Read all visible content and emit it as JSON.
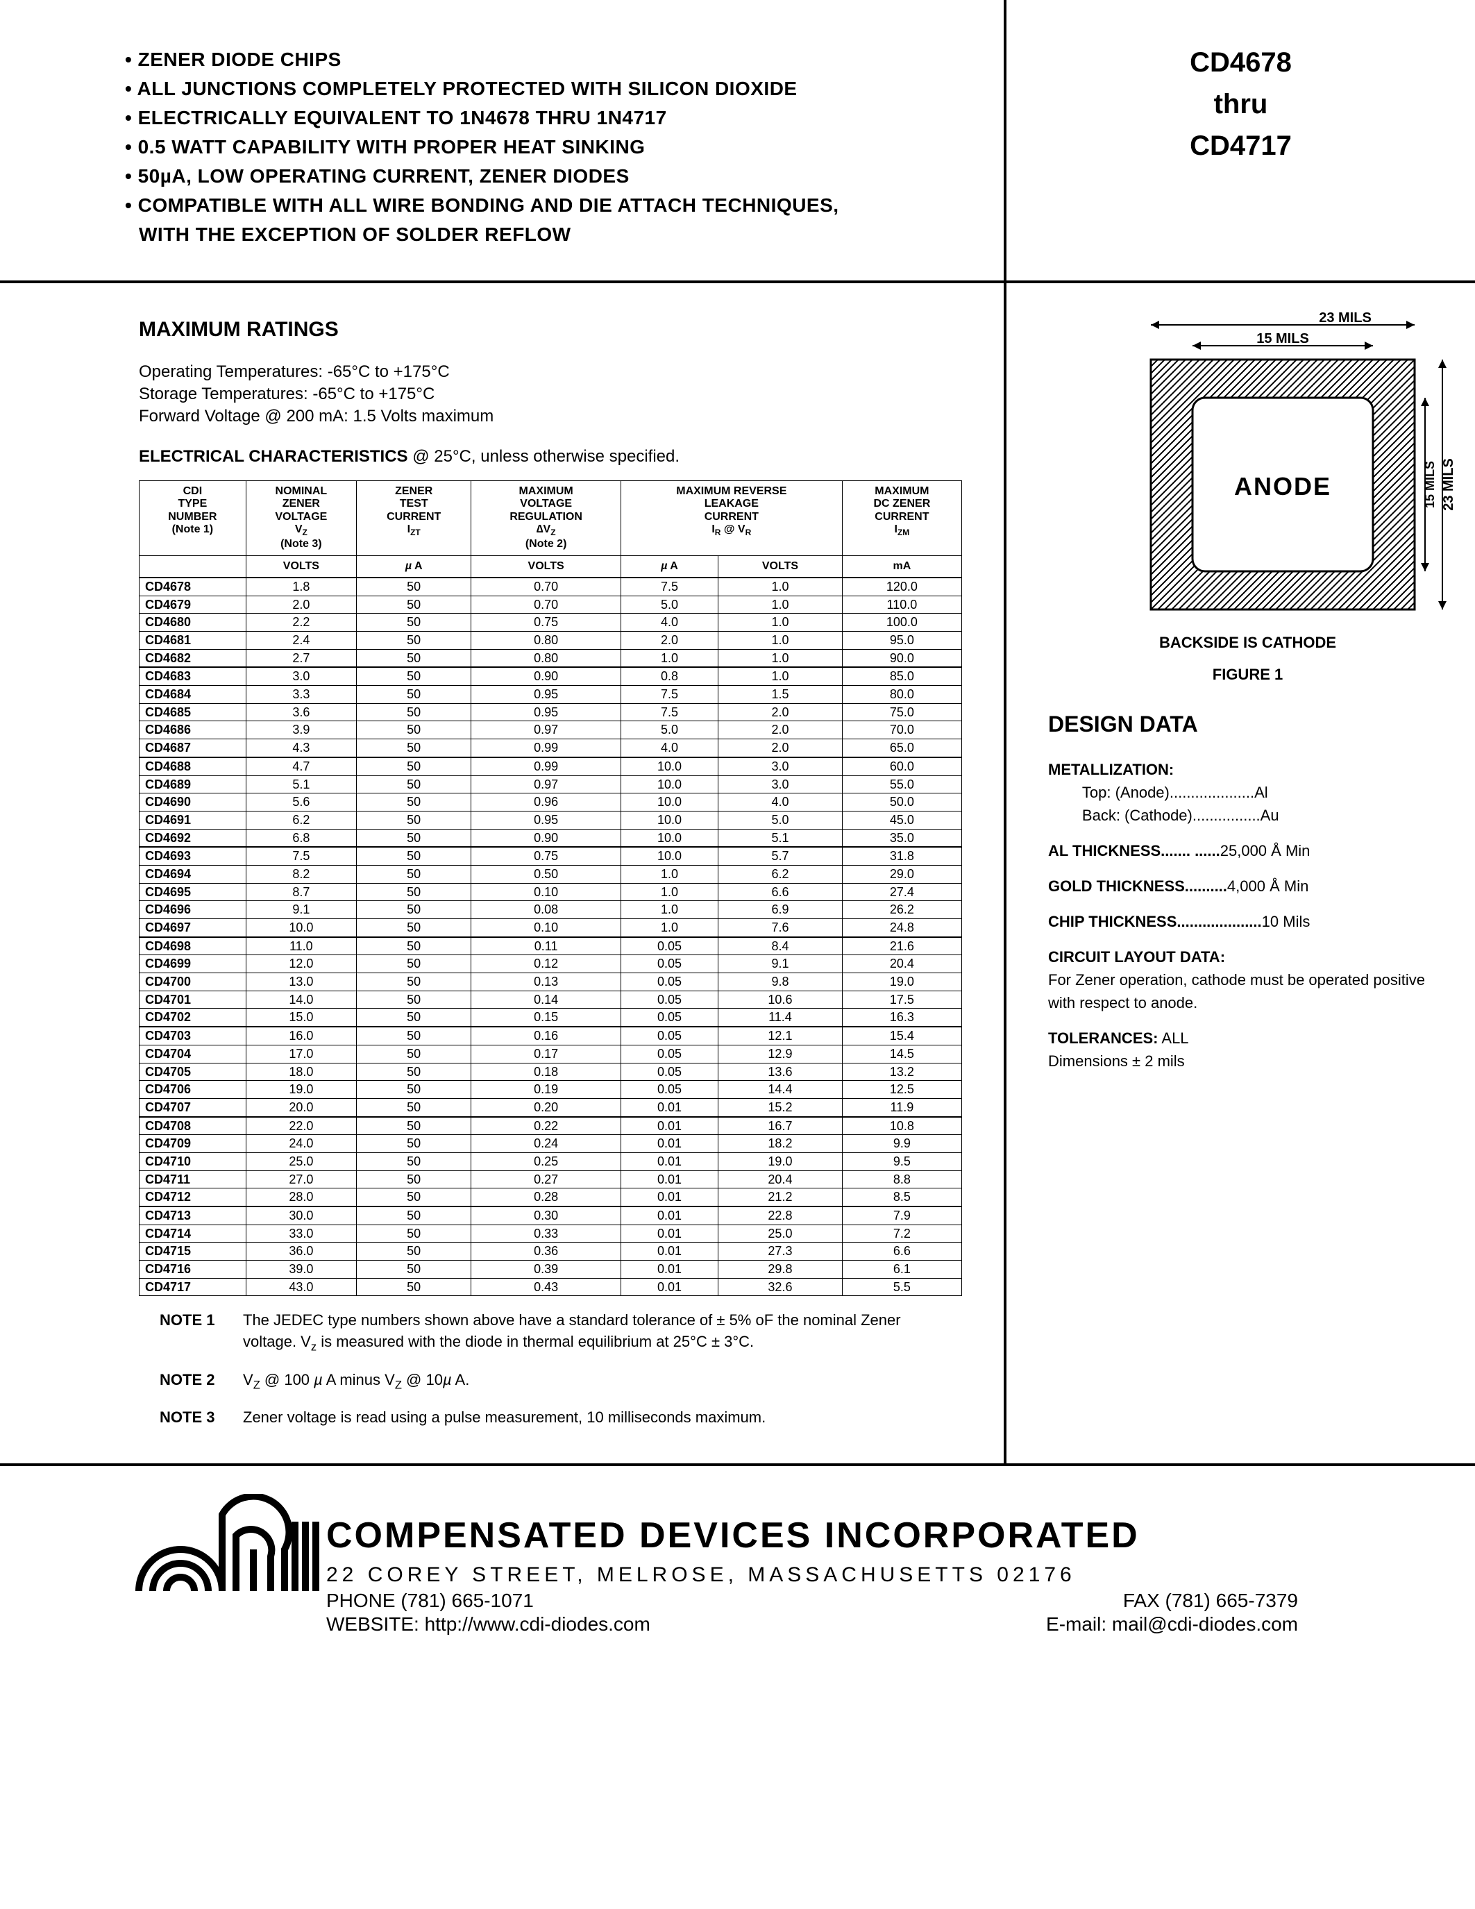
{
  "header": {
    "bullets": [
      "ZENER DIODE CHIPS",
      "ALL JUNCTIONS COMPLETELY PROTECTED WITH SILICON DIOXIDE",
      "ELECTRICALLY EQUIVALENT TO 1N4678 THRU 1N4717",
      "0.5 WATT CAPABILITY WITH PROPER HEAT SINKING",
      "50µA, LOW OPERATING CURRENT, ZENER DIODES",
      "COMPATIBLE WITH ALL WIRE BONDING AND DIE ATTACH TECHNIQUES,"
    ],
    "bullet_indent": "WITH THE EXCEPTION OF SOLDER REFLOW",
    "part_from": "CD4678",
    "part_thru": "thru",
    "part_to": "CD4717"
  },
  "ratings": {
    "title": "MAXIMUM RATINGS",
    "lines": [
      "Operating Temperatures: -65°C to +175°C",
      "Storage Temperatures: -65°C to +175°C",
      "Forward Voltage @ 200 mA: 1.5 Volts maximum"
    ],
    "elec_label": "ELECTRICAL CHARACTERISTICS",
    "elec_cond": " @ 25°C, unless otherwise specified."
  },
  "table": {
    "headers": [
      {
        "l1": "CDI",
        "l2": "TYPE",
        "l3": "NUMBER",
        "note": "(Note 1)",
        "unit": ""
      },
      {
        "l1": "NOMINAL",
        "l2": "ZENER",
        "l3": "VOLTAGE",
        "sym": "V",
        "sub": "Z",
        "note": "(Note 3)",
        "unit": "VOLTS"
      },
      {
        "l1": "ZENER",
        "l2": "TEST",
        "l3": "CURRENT",
        "sym": "I",
        "sub": "ZT",
        "unit": "µ A"
      },
      {
        "l1": "MAXIMUM",
        "l2": "VOLTAGE",
        "l3": "REGULATION",
        "sym": "∆V",
        "sub": "Z",
        "note": "(Note 2)",
        "unit": "VOLTS"
      },
      {
        "l1": "MAXIMUM REVERSE",
        "l2": "LEAKAGE",
        "l3": "CURRENT",
        "sym": "I",
        "sub": "R",
        "at": " @ V",
        "sub2": "R",
        "unit_a": "µ A",
        "unit_b": "VOLTS",
        "span": 2
      },
      {
        "l1": "MAXIMUM",
        "l2": "DC ZENER",
        "l3": "CURRENT",
        "sym": "I",
        "sub": "ZM",
        "unit": "mA"
      }
    ],
    "groups": [
      [
        [
          "CD4678",
          "1.8",
          "50",
          "0.70",
          "7.5",
          "1.0",
          "120.0"
        ],
        [
          "CD4679",
          "2.0",
          "50",
          "0.70",
          "5.0",
          "1.0",
          "110.0"
        ],
        [
          "CD4680",
          "2.2",
          "50",
          "0.75",
          "4.0",
          "1.0",
          "100.0"
        ],
        [
          "CD4681",
          "2.4",
          "50",
          "0.80",
          "2.0",
          "1.0",
          "95.0"
        ],
        [
          "CD4682",
          "2.7",
          "50",
          "0.80",
          "1.0",
          "1.0",
          "90.0"
        ]
      ],
      [
        [
          "CD4683",
          "3.0",
          "50",
          "0.90",
          "0.8",
          "1.0",
          "85.0"
        ],
        [
          "CD4684",
          "3.3",
          "50",
          "0.95",
          "7.5",
          "1.5",
          "80.0"
        ],
        [
          "CD4685",
          "3.6",
          "50",
          "0.95",
          "7.5",
          "2.0",
          "75.0"
        ],
        [
          "CD4686",
          "3.9",
          "50",
          "0.97",
          "5.0",
          "2.0",
          "70.0"
        ],
        [
          "CD4687",
          "4.3",
          "50",
          "0.99",
          "4.0",
          "2.0",
          "65.0"
        ]
      ],
      [
        [
          "CD4688",
          "4.7",
          "50",
          "0.99",
          "10.0",
          "3.0",
          "60.0"
        ],
        [
          "CD4689",
          "5.1",
          "50",
          "0.97",
          "10.0",
          "3.0",
          "55.0"
        ],
        [
          "CD4690",
          "5.6",
          "50",
          "0.96",
          "10.0",
          "4.0",
          "50.0"
        ],
        [
          "CD4691",
          "6.2",
          "50",
          "0.95",
          "10.0",
          "5.0",
          "45.0"
        ],
        [
          "CD4692",
          "6.8",
          "50",
          "0.90",
          "10.0",
          "5.1",
          "35.0"
        ]
      ],
      [
        [
          "CD4693",
          "7.5",
          "50",
          "0.75",
          "10.0",
          "5.7",
          "31.8"
        ],
        [
          "CD4694",
          "8.2",
          "50",
          "0.50",
          "1.0",
          "6.2",
          "29.0"
        ],
        [
          "CD4695",
          "8.7",
          "50",
          "0.10",
          "1.0",
          "6.6",
          "27.4"
        ],
        [
          "CD4696",
          "9.1",
          "50",
          "0.08",
          "1.0",
          "6.9",
          "26.2"
        ],
        [
          "CD4697",
          "10.0",
          "50",
          "0.10",
          "1.0",
          "7.6",
          "24.8"
        ]
      ],
      [
        [
          "CD4698",
          "11.0",
          "50",
          "0.11",
          "0.05",
          "8.4",
          "21.6"
        ],
        [
          "CD4699",
          "12.0",
          "50",
          "0.12",
          "0.05",
          "9.1",
          "20.4"
        ],
        [
          "CD4700",
          "13.0",
          "50",
          "0.13",
          "0.05",
          "9.8",
          "19.0"
        ],
        [
          "CD4701",
          "14.0",
          "50",
          "0.14",
          "0.05",
          "10.6",
          "17.5"
        ],
        [
          "CD4702",
          "15.0",
          "50",
          "0.15",
          "0.05",
          "11.4",
          "16.3"
        ]
      ],
      [
        [
          "CD4703",
          "16.0",
          "50",
          "0.16",
          "0.05",
          "12.1",
          "15.4"
        ],
        [
          "CD4704",
          "17.0",
          "50",
          "0.17",
          "0.05",
          "12.9",
          "14.5"
        ],
        [
          "CD4705",
          "18.0",
          "50",
          "0.18",
          "0.05",
          "13.6",
          "13.2"
        ],
        [
          "CD4706",
          "19.0",
          "50",
          "0.19",
          "0.05",
          "14.4",
          "12.5"
        ],
        [
          "CD4707",
          "20.0",
          "50",
          "0.20",
          "0.01",
          "15.2",
          "11.9"
        ]
      ],
      [
        [
          "CD4708",
          "22.0",
          "50",
          "0.22",
          "0.01",
          "16.7",
          "10.8"
        ],
        [
          "CD4709",
          "24.0",
          "50",
          "0.24",
          "0.01",
          "18.2",
          "9.9"
        ],
        [
          "CD4710",
          "25.0",
          "50",
          "0.25",
          "0.01",
          "19.0",
          "9.5"
        ],
        [
          "CD4711",
          "27.0",
          "50",
          "0.27",
          "0.01",
          "20.4",
          "8.8"
        ],
        [
          "CD4712",
          "28.0",
          "50",
          "0.28",
          "0.01",
          "21.2",
          "8.5"
        ]
      ],
      [
        [
          "CD4713",
          "30.0",
          "50",
          "0.30",
          "0.01",
          "22.8",
          "7.9"
        ],
        [
          "CD4714",
          "33.0",
          "50",
          "0.33",
          "0.01",
          "25.0",
          "7.2"
        ],
        [
          "CD4715",
          "36.0",
          "50",
          "0.36",
          "0.01",
          "27.3",
          "6.6"
        ],
        [
          "CD4716",
          "39.0",
          "50",
          "0.39",
          "0.01",
          "29.8",
          "6.1"
        ],
        [
          "CD4717",
          "43.0",
          "50",
          "0.43",
          "0.01",
          "32.6",
          "5.5"
        ]
      ]
    ]
  },
  "notes": [
    {
      "label": "NOTE 1",
      "text": "The JEDEC type numbers shown above have a standard tolerance of ± 5% oF the nominal Zener voltage. Vz is measured with the diode in thermal equilibrium at 25°C ± 3°C."
    },
    {
      "label": "NOTE 2",
      "text": "VZ @ 100 µ A minus VZ @ 10µ A."
    },
    {
      "label": "NOTE 3",
      "text": "Zener voltage is read using a pulse measurement, 10 milliseconds maximum."
    }
  ],
  "figure": {
    "dim_outer": "23 MILS",
    "dim_inner": "15 MILS",
    "anode": "ANODE",
    "backside": "BACKSIDE IS CATHODE",
    "caption": "FIGURE 1"
  },
  "design": {
    "title": "DESIGN DATA",
    "metallization_label": "METALLIZATION:",
    "metal_top": "Top: (Anode)....................Al",
    "metal_back": "Back: (Cathode)................Au",
    "al_thickness_label": "AL THICKNESS....... ......",
    "al_thickness_val": "25,000 Å Min",
    "gold_thickness_label": "GOLD THICKNESS..........",
    "gold_thickness_val": "4,000 Å Min",
    "chip_thickness_label": "CHIP THICKNESS....................",
    "chip_thickness_val": "10 Mils",
    "circuit_label": "CIRCUIT LAYOUT DATA:",
    "circuit_text": "For Zener operation, cathode must be operated positive with respect to anode.",
    "tol_label": "TOLERANCES:",
    "tol_val": " ALL",
    "tol_dim": "Dimensions ± 2 mils"
  },
  "footer": {
    "company": "COMPENSATED DEVICES INCORPORATED",
    "address": "22 COREY STREET, MELROSE, MASSACHUSETTS 02176",
    "phone": "PHONE (781) 665-1071",
    "fax": "FAX (781) 665-7379",
    "website": "WEBSITE:  http://www.cdi-diodes.com",
    "email": "E-mail: mail@cdi-diodes.com"
  }
}
